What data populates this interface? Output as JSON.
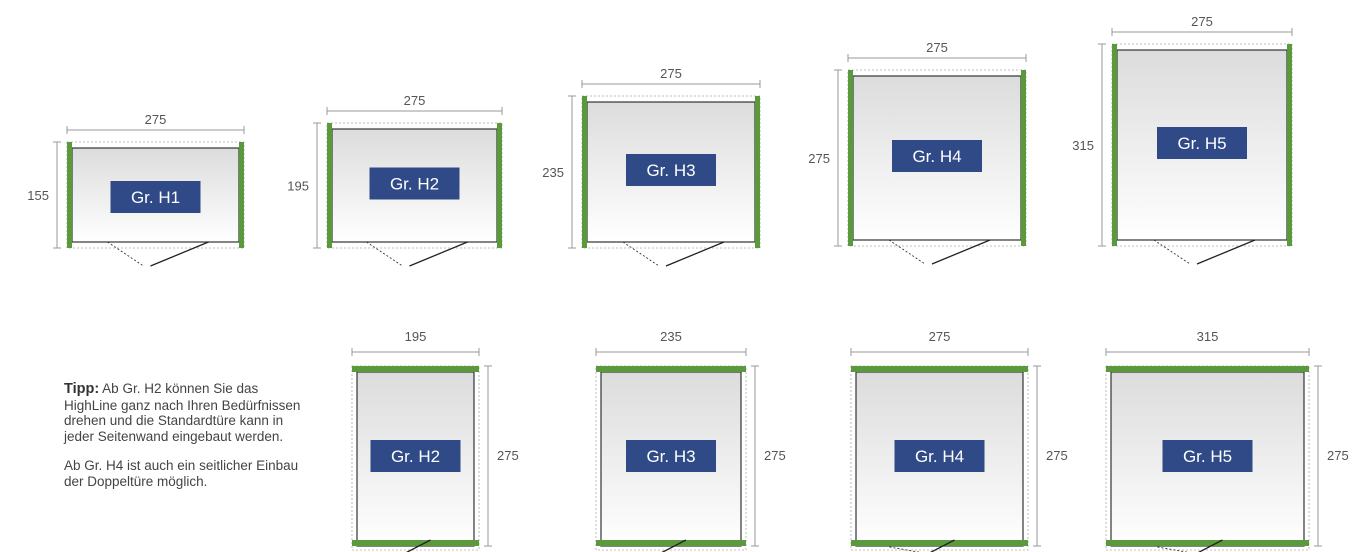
{
  "colors": {
    "wall_green": "#5a9a3c",
    "label_bg": "#2f4a87",
    "label_text": "#ffffff",
    "outline": "#333333",
    "dimension_line": "#999999"
  },
  "plans_front_door": [
    {
      "label": "Gr. H1",
      "width": "275",
      "depth": "155"
    },
    {
      "label": "Gr. H2",
      "width": "275",
      "depth": "195"
    },
    {
      "label": "Gr. H3",
      "width": "275",
      "depth": "235"
    },
    {
      "label": "Gr. H4",
      "width": "275",
      "depth": "275"
    },
    {
      "label": "Gr. H5",
      "width": "275",
      "depth": "315"
    }
  ],
  "plans_rotated": [
    {
      "label": "Gr. H2",
      "width": "195",
      "depth": "275"
    },
    {
      "label": "Gr. H3",
      "width": "235",
      "depth": "275"
    },
    {
      "label": "Gr. H4",
      "width": "275",
      "depth": "275"
    },
    {
      "label": "Gr. H5",
      "width": "315",
      "depth": "275"
    }
  ],
  "tip": {
    "title": "Tipp:",
    "text": " Ab Gr. H2 können Sie das HighLine ganz nach Ihren Bedürfnissen drehen und die Standardtüre kann in jeder Seitenwand eingebaut werden.",
    "note": "Ab Gr. H4 ist auch ein seitlicher Einbau der Doppeltüre möglich."
  }
}
